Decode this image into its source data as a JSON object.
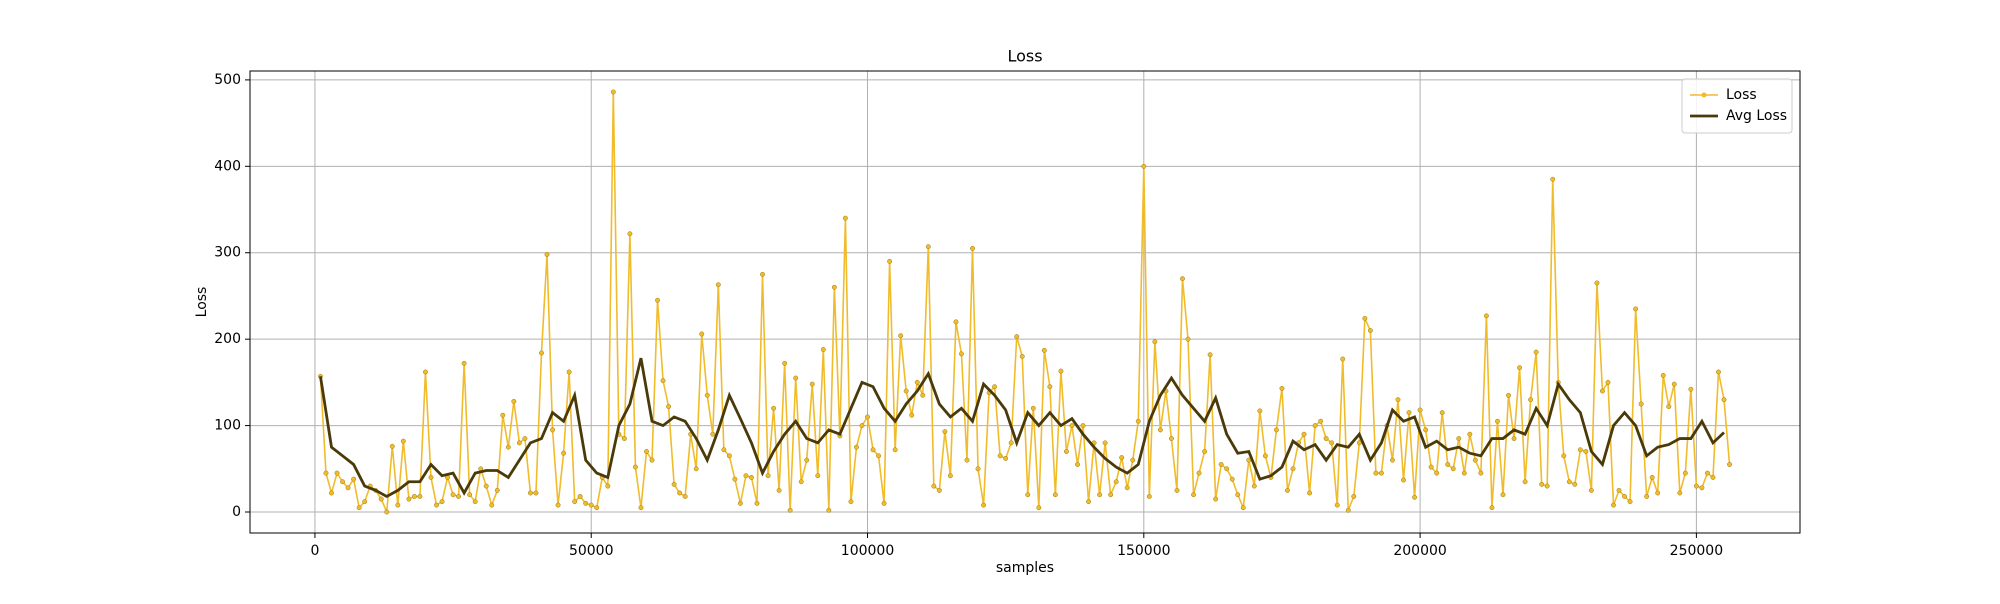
{
  "chart_data": {
    "type": "line",
    "title": "Loss",
    "xlabel": "samples",
    "ylabel": "Loss",
    "xlim": [
      -11750,
      268750
    ],
    "ylim": [
      -24.3,
      510.3
    ],
    "xticks": [
      0,
      50000,
      100000,
      150000,
      200000,
      250000
    ],
    "yticks": [
      0,
      100,
      200,
      300,
      400,
      500
    ],
    "grid": true,
    "legend": "upper right",
    "series": [
      {
        "name": "Loss",
        "color": "#f0bc2c",
        "marker": true,
        "x": [
          1000,
          2000,
          3000,
          4000,
          5000,
          6000,
          7000,
          8000,
          9000,
          10000,
          11000,
          12000,
          13000,
          14000,
          15000,
          16000,
          17000,
          18000,
          19000,
          20000,
          21000,
          22000,
          23000,
          24000,
          25000,
          26000,
          27000,
          28000,
          29000,
          30000,
          31000,
          32000,
          33000,
          34000,
          35000,
          36000,
          37000,
          38000,
          39000,
          40000,
          41000,
          42000,
          43000,
          44000,
          45000,
          46000,
          47000,
          48000,
          49000,
          50000,
          51000,
          52000,
          53000,
          54000,
          55000,
          56000,
          57000,
          58000,
          59000,
          60000,
          61000,
          62000,
          63000,
          64000,
          65000,
          66000,
          67000,
          68000,
          69000,
          70000,
          71000,
          72000,
          73000,
          74000,
          75000,
          76000,
          77000,
          78000,
          79000,
          80000,
          81000,
          82000,
          83000,
          84000,
          85000,
          86000,
          87000,
          88000,
          89000,
          90000,
          91000,
          92000,
          93000,
          94000,
          95000,
          96000,
          97000,
          98000,
          99000,
          100000,
          101000,
          102000,
          103000,
          104000,
          105000,
          106000,
          107000,
          108000,
          109000,
          110000,
          111000,
          112000,
          113000,
          114000,
          115000,
          116000,
          117000,
          118000,
          119000,
          120000,
          121000,
          122000,
          123000,
          124000,
          125000,
          126000,
          127000,
          128000,
          129000,
          130000,
          131000,
          132000,
          133000,
          134000,
          135000,
          136000,
          137000,
          138000,
          139000,
          140000,
          141000,
          142000,
          143000,
          144000,
          145000,
          146000,
          147000,
          148000,
          149000,
          150000,
          151000,
          152000,
          153000,
          154000,
          155000,
          156000,
          157000,
          158000,
          159000,
          160000,
          161000,
          162000,
          163000,
          164000,
          165000,
          166000,
          167000,
          168000,
          169000,
          170000,
          171000,
          172000,
          173000,
          174000,
          175000,
          176000,
          177000,
          178000,
          179000,
          180000,
          181000,
          182000,
          183000,
          184000,
          185000,
          186000,
          187000,
          188000,
          189000,
          190000,
          191000,
          192000,
          193000,
          194000,
          195000,
          196000,
          197000,
          198000,
          199000,
          200000,
          201000,
          202000,
          203000,
          204000,
          205000,
          206000,
          207000,
          208000,
          209000,
          210000,
          211000,
          212000,
          213000,
          214000,
          215000,
          216000,
          217000,
          218000,
          219000,
          220000,
          221000,
          222000,
          223000,
          224000,
          225000,
          226000,
          227000,
          228000,
          229000,
          230000,
          231000,
          232000,
          233000,
          234000,
          235000,
          236000,
          237000,
          238000,
          239000,
          240000,
          241000,
          242000,
          243000,
          244000,
          245000,
          246000,
          247000,
          248000,
          249000,
          250000,
          251000,
          252000,
          253000,
          254000,
          255000,
          256000
        ],
        "values": [
          157,
          45,
          22,
          45,
          35,
          28,
          38,
          5,
          12,
          30,
          25,
          15,
          0,
          76,
          8,
          82,
          15,
          18,
          18,
          162,
          40,
          8,
          12,
          40,
          20,
          18,
          172,
          20,
          12,
          50,
          30,
          8,
          25,
          112,
          75,
          128,
          80,
          85,
          22,
          22,
          184,
          298,
          95,
          8,
          68,
          162,
          12,
          18,
          10,
          8,
          5,
          40,
          30,
          486,
          90,
          85,
          322,
          52,
          5,
          70,
          60,
          245,
          152,
          122,
          32,
          22,
          18,
          90,
          50,
          206,
          135,
          90,
          263,
          72,
          65,
          38,
          10,
          42,
          40,
          10,
          275,
          42,
          120,
          25,
          172,
          2,
          155,
          35,
          60,
          148,
          42,
          188,
          2,
          260,
          88,
          340,
          12,
          75,
          100,
          110,
          72,
          65,
          10,
          290,
          72,
          204,
          140,
          112,
          150,
          135,
          307,
          30,
          25,
          93,
          42,
          220,
          183,
          60,
          305,
          50,
          8,
          138,
          145,
          65,
          62,
          80,
          203,
          180,
          20,
          120,
          5,
          187,
          145,
          20,
          163,
          70,
          100,
          55,
          100,
          12,
          80,
          20,
          80,
          20,
          35,
          63,
          28,
          60,
          105,
          400,
          18,
          197,
          95,
          140,
          85,
          25,
          270,
          200,
          20,
          45,
          70,
          182,
          15,
          55,
          50,
          38,
          20,
          5,
          60,
          30,
          117,
          65,
          40,
          95,
          143,
          25,
          50,
          80,
          90,
          22,
          100,
          105,
          85,
          80,
          8,
          177,
          2,
          18,
          80,
          224,
          210,
          45,
          45,
          100,
          60,
          130,
          37,
          115,
          17,
          118,
          95,
          52,
          45,
          115,
          55,
          50,
          85,
          45,
          90,
          60,
          45,
          227,
          5,
          105,
          20,
          135,
          85,
          167,
          35,
          130,
          185,
          32,
          30,
          385,
          150,
          65,
          35,
          32,
          72,
          70,
          25,
          265,
          140,
          150,
          8,
          25,
          18,
          12,
          235,
          125,
          18,
          40,
          22,
          158,
          122,
          148,
          22,
          45,
          142,
          30,
          28,
          45,
          40,
          162,
          130,
          55
        ]
      },
      {
        "name": "Avg Loss",
        "color": "#4a3a0a",
        "marker": false,
        "x": [
          1000,
          3000,
          5000,
          7000,
          9000,
          11000,
          13000,
          15000,
          17000,
          19000,
          21000,
          23000,
          25000,
          27000,
          29000,
          31000,
          33000,
          35000,
          37000,
          39000,
          41000,
          43000,
          45000,
          47000,
          49000,
          51000,
          53000,
          55000,
          57000,
          59000,
          61000,
          63000,
          65000,
          67000,
          69000,
          71000,
          73000,
          75000,
          77000,
          79000,
          81000,
          83000,
          85000,
          87000,
          89000,
          91000,
          93000,
          95000,
          97000,
          99000,
          101000,
          103000,
          105000,
          107000,
          109000,
          111000,
          113000,
          115000,
          117000,
          119000,
          121000,
          123000,
          125000,
          127000,
          129000,
          131000,
          133000,
          135000,
          137000,
          139000,
          141000,
          143000,
          145000,
          147000,
          149000,
          151000,
          153000,
          155000,
          157000,
          159000,
          161000,
          163000,
          165000,
          167000,
          169000,
          171000,
          173000,
          175000,
          177000,
          179000,
          181000,
          183000,
          185000,
          187000,
          189000,
          191000,
          193000,
          195000,
          197000,
          199000,
          201000,
          203000,
          205000,
          207000,
          209000,
          211000,
          213000,
          215000,
          217000,
          219000,
          221000,
          223000,
          225000,
          227000,
          229000,
          231000,
          233000,
          235000,
          237000,
          239000,
          241000,
          243000,
          245000,
          247000,
          249000,
          251000,
          253000,
          255000
        ],
        "values": [
          157,
          75,
          65,
          55,
          30,
          25,
          18,
          25,
          35,
          35,
          55,
          42,
          45,
          22,
          45,
          48,
          48,
          40,
          60,
          80,
          85,
          115,
          105,
          135,
          60,
          45,
          40,
          100,
          125,
          178,
          105,
          100,
          110,
          105,
          85,
          60,
          95,
          135,
          108,
          80,
          45,
          70,
          90,
          105,
          85,
          80,
          95,
          90,
          120,
          150,
          145,
          120,
          105,
          125,
          140,
          160,
          125,
          110,
          120,
          105,
          148,
          135,
          118,
          80,
          115,
          100,
          115,
          100,
          108,
          90,
          75,
          62,
          52,
          45,
          55,
          105,
          135,
          155,
          135,
          120,
          105,
          132,
          90,
          68,
          70,
          38,
          42,
          52,
          82,
          72,
          78,
          60,
          78,
          75,
          90,
          60,
          80,
          118,
          105,
          110,
          75,
          82,
          72,
          75,
          68,
          65,
          85,
          85,
          95,
          90,
          120,
          100,
          148,
          130,
          115,
          70,
          55,
          100,
          115,
          100,
          65,
          75,
          78,
          85,
          85,
          105,
          80,
          92
        ]
      }
    ]
  }
}
